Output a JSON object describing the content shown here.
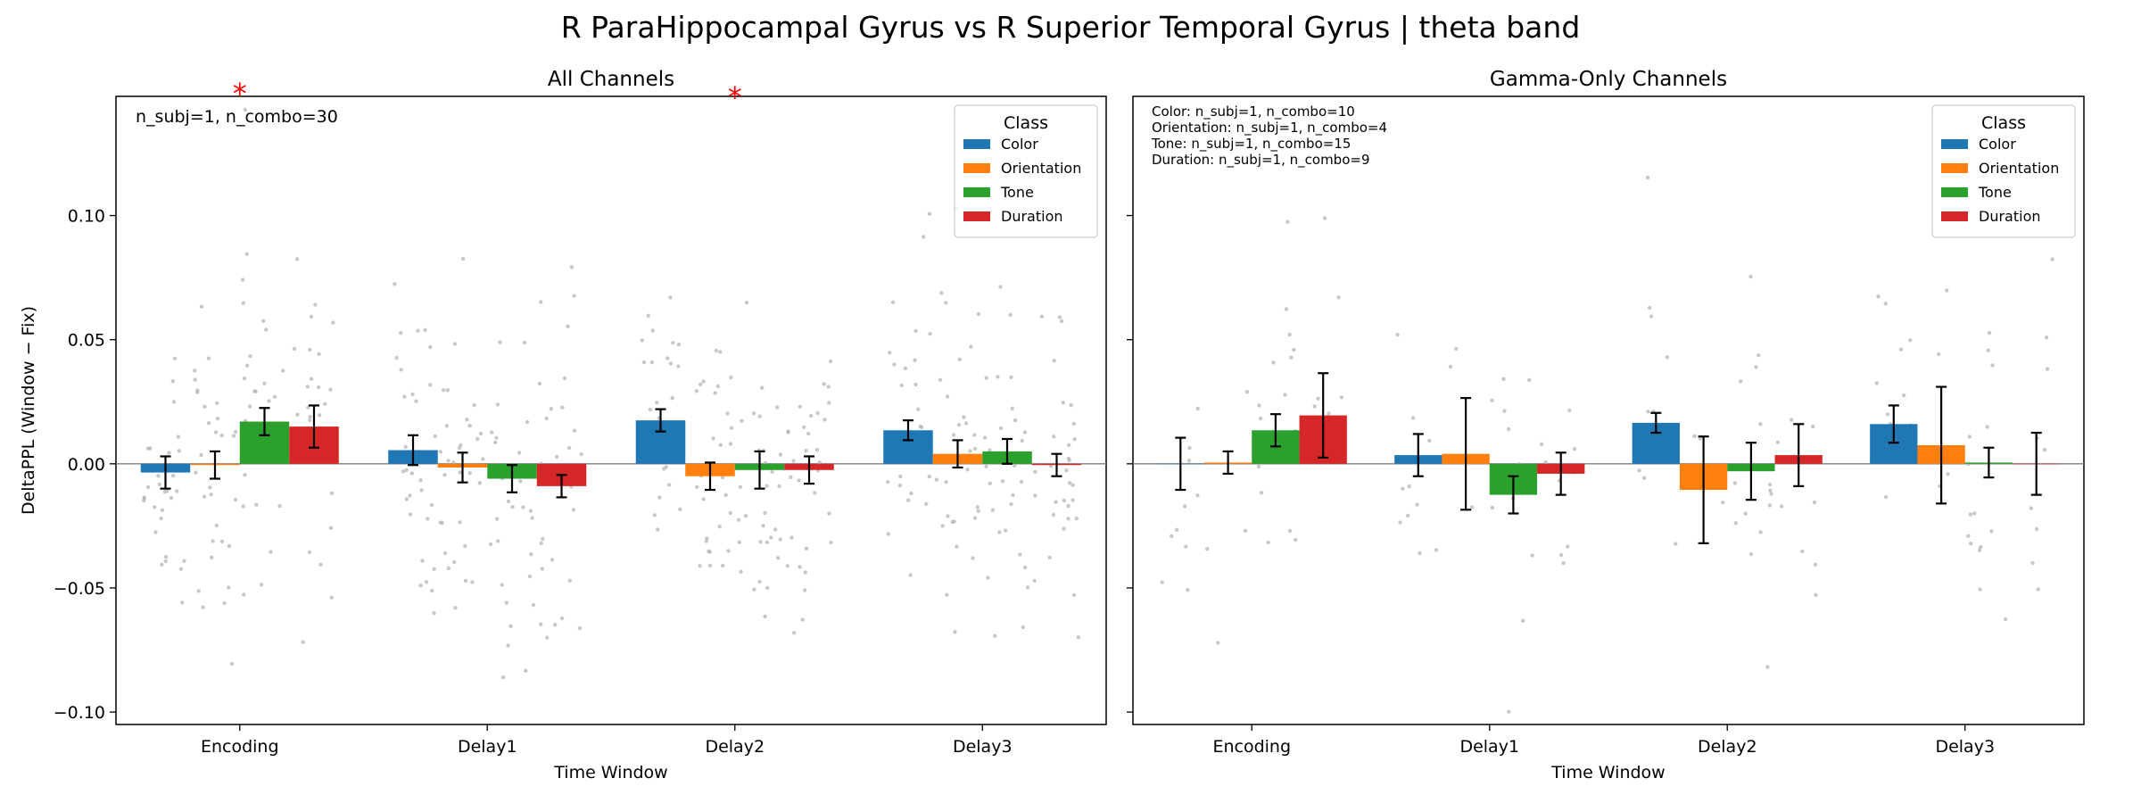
{
  "figure": {
    "title": "R ParaHippocampal Gyrus vs R Superior Temporal Gyrus  |  theta band"
  },
  "chart_data": [
    {
      "type": "bar",
      "title": "All Channels",
      "xlabel": "Time Window",
      "ylabel": "DeltaPPL (Window − Fix)",
      "ylim": [
        -0.105,
        0.148
      ],
      "yticks": [
        -0.1,
        -0.05,
        0.0,
        0.05,
        0.1
      ],
      "ytick_labels": [
        "−0.10",
        "−0.05",
        "0.00",
        "0.05",
        "0.10"
      ],
      "categories": [
        "Encoding",
        "Delay1",
        "Delay2",
        "Delay3"
      ],
      "legend": {
        "title": "Class",
        "position": "top-right"
      },
      "annotation": "n_subj=1, n_combo=30",
      "significance": [
        {
          "category": "Encoding",
          "label": "*"
        },
        {
          "category": "Delay2",
          "label": "*"
        }
      ],
      "series": [
        {
          "name": "Color",
          "color": "#1f77b4",
          "values": [
            -0.0035,
            0.0055,
            0.0175,
            0.0135
          ],
          "errors": [
            0.0065,
            0.006,
            0.0045,
            0.004
          ]
        },
        {
          "name": "Orientation",
          "color": "#ff7f0e",
          "values": [
            -0.0005,
            -0.0015,
            -0.005,
            0.004
          ],
          "errors": [
            0.0055,
            0.006,
            0.0055,
            0.0055
          ]
        },
        {
          "name": "Tone",
          "color": "#2ca02c",
          "values": [
            0.017,
            -0.006,
            -0.0025,
            0.005
          ],
          "errors": [
            0.0055,
            0.0055,
            0.0075,
            0.005
          ]
        },
        {
          "name": "Duration",
          "color": "#d62728",
          "values": [
            0.015,
            -0.009,
            -0.0025,
            -0.0005
          ],
          "errors": [
            0.0085,
            0.0045,
            0.0055,
            0.0045
          ]
        }
      ]
    },
    {
      "type": "bar",
      "title": "Gamma-Only Channels",
      "xlabel": "Time Window",
      "ylabel": "",
      "ylim": [
        -0.105,
        0.148
      ],
      "yticks": [
        -0.1,
        -0.05,
        0.0,
        0.05,
        0.1
      ],
      "categories": [
        "Encoding",
        "Delay1",
        "Delay2",
        "Delay3"
      ],
      "legend": {
        "title": "Class",
        "position": "top-right"
      },
      "annotation_lines": [
        "Color: n_subj=1, n_combo=10",
        "Orientation: n_subj=1, n_combo=4",
        "Tone: n_subj=1, n_combo=15",
        "Duration: n_subj=1, n_combo=9"
      ],
      "series": [
        {
          "name": "Color",
          "color": "#1f77b4",
          "values": [
            0.0,
            0.0035,
            0.0165,
            0.016
          ],
          "errors": [
            0.0105,
            0.0085,
            0.004,
            0.0075
          ]
        },
        {
          "name": "Orientation",
          "color": "#ff7f0e",
          "values": [
            0.0005,
            0.004,
            -0.0105,
            0.0075
          ],
          "errors": [
            0.0045,
            0.0225,
            0.0215,
            0.0235
          ]
        },
        {
          "name": "Tone",
          "color": "#2ca02c",
          "values": [
            0.0135,
            -0.0125,
            -0.003,
            0.0005
          ],
          "errors": [
            0.0065,
            0.0075,
            0.0115,
            0.006
          ]
        },
        {
          "name": "Duration",
          "color": "#d62728",
          "values": [
            0.0195,
            -0.004,
            0.0035,
            0.0
          ],
          "errors": [
            0.017,
            0.0085,
            0.0125,
            0.0125
          ]
        }
      ]
    }
  ]
}
